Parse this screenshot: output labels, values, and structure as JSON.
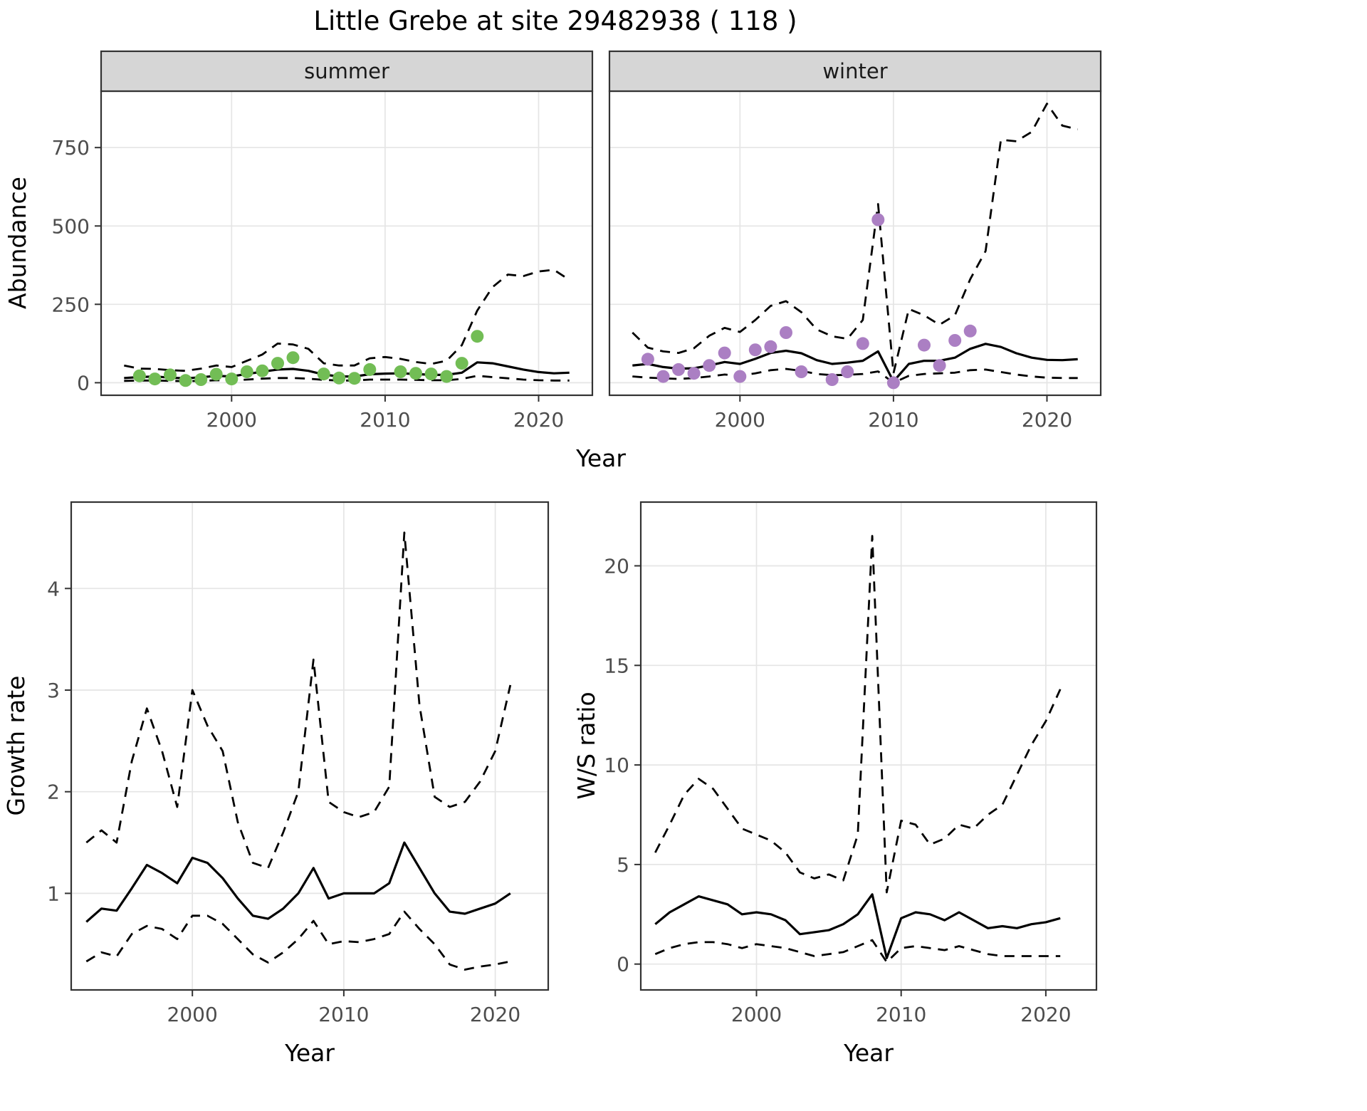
{
  "title": "Little Grebe at site 29482938 ( 118 )",
  "colors": {
    "line": "#000000",
    "grid": "#e5e5e5",
    "border": "#333333",
    "tick": "#333333",
    "axis_text": "#4d4d4d",
    "strip_bg": "#d6d6d6",
    "summer_point": "#72bd55",
    "winter_point": "#ab7fc3"
  },
  "chart_data": [
    {
      "id": "abundance",
      "type": "line",
      "xlabel": "Year",
      "ylabel": "Abundance",
      "xlim": [
        1991.5,
        2023.5
      ],
      "ylim": [
        -40,
        930
      ],
      "xticks": [
        2000,
        2010,
        2020
      ],
      "yticks": [
        0,
        250,
        500,
        750
      ],
      "grid": true,
      "legend": "none",
      "x": [
        1993,
        1994,
        1995,
        1996,
        1997,
        1998,
        1999,
        2000,
        2001,
        2002,
        2003,
        2004,
        2005,
        2006,
        2007,
        2008,
        2009,
        2010,
        2011,
        2012,
        2013,
        2014,
        2015,
        2016,
        2017,
        2018,
        2019,
        2020,
        2021,
        2022
      ],
      "facets": [
        {
          "label": "summer",
          "point_color": "#72bd55",
          "points": {
            "x": [
              1994,
              1995,
              1996,
              1997,
              1998,
              1999,
              2000,
              2001,
              2002,
              2003,
              2004,
              2006,
              2007,
              2008,
              2009,
              2011,
              2012,
              2013,
              2014,
              2015,
              2016
            ],
            "y": [
              22,
              12,
              25,
              7,
              10,
              27,
              12,
              35,
              38,
              62,
              80,
              28,
              15,
              14,
              42,
              35,
              30,
              28,
              20,
              62,
              148
            ]
          },
          "series": [
            {
              "name": "fit",
              "style": "solid",
              "y": [
                15,
                18,
                20,
                16,
                14,
                17,
                22,
                20,
                28,
                35,
                42,
                44,
                38,
                26,
                20,
                20,
                27,
                29,
                30,
                28,
                25,
                25,
                32,
                65,
                62,
                52,
                42,
                34,
                30,
                32
              ]
            },
            {
              "name": "upper_ci",
              "style": "dashed",
              "y": [
                55,
                45,
                44,
                40,
                38,
                45,
                55,
                50,
                70,
                90,
                125,
                122,
                108,
                62,
                55,
                55,
                78,
                82,
                76,
                66,
                60,
                70,
                120,
                230,
                305,
                345,
                340,
                355,
                360,
                328
              ]
            },
            {
              "name": "lower_ci",
              "style": "dashed",
              "y": [
                6,
                7,
                7,
                6,
                5,
                6,
                8,
                7,
                10,
                13,
                15,
                15,
                13,
                9,
                7,
                7,
                10,
                10,
                10,
                9,
                8,
                8,
                12,
                22,
                18,
                14,
                10,
                8,
                7,
                7
              ]
            }
          ]
        },
        {
          "label": "winter",
          "point_color": "#ab7fc3",
          "points": {
            "x": [
              1994,
              1995,
              1996,
              1997,
              1998,
              1999,
              2000,
              2001,
              2002,
              2003,
              2004,
              2006,
              2007,
              2008,
              2009,
              2010,
              2012,
              2013,
              2014,
              2015
            ],
            "y": [
              75,
              20,
              42,
              30,
              55,
              95,
              20,
              105,
              115,
              160,
              35,
              10,
              35,
              125,
              520,
              0,
              120,
              55,
              135,
              165
            ]
          },
          "series": [
            {
              "name": "fit",
              "style": "solid",
              "y": [
                55,
                60,
                50,
                45,
                46,
                55,
                66,
                60,
                76,
                95,
                102,
                94,
                72,
                60,
                64,
                70,
                100,
                4,
                60,
                70,
                70,
                80,
                108,
                124,
                114,
                94,
                80,
                73,
                72,
                75
              ]
            },
            {
              "name": "upper_ci",
              "style": "dashed",
              "y": [
                160,
                112,
                100,
                95,
                110,
                150,
                175,
                162,
                200,
                245,
                260,
                225,
                170,
                148,
                140,
                200,
                570,
                30,
                235,
                215,
                185,
                215,
                330,
                420,
                775,
                770,
                800,
                890,
                820,
                808
              ]
            },
            {
              "name": "lower_ci",
              "style": "dashed",
              "y": [
                20,
                16,
                14,
                12,
                15,
                20,
                26,
                22,
                30,
                40,
                44,
                38,
                28,
                24,
                25,
                28,
                36,
                0,
                22,
                28,
                30,
                32,
                40,
                42,
                34,
                26,
                20,
                16,
                15,
                15
              ]
            }
          ]
        }
      ]
    },
    {
      "id": "growth_rate",
      "type": "line",
      "xlabel": "Year",
      "ylabel": "Growth rate",
      "xlim": [
        1992,
        2023.5
      ],
      "ylim": [
        0.05,
        4.85
      ],
      "xticks": [
        2000,
        2010,
        2020
      ],
      "yticks": [
        1,
        2,
        3,
        4
      ],
      "grid": true,
      "legend": "none",
      "x": [
        1993,
        1994,
        1995,
        1996,
        1997,
        1998,
        1999,
        2000,
        2001,
        2002,
        2003,
        2004,
        2005,
        2006,
        2007,
        2008,
        2009,
        2010,
        2011,
        2012,
        2013,
        2014,
        2015,
        2016,
        2017,
        2018,
        2019,
        2020,
        2021
      ],
      "series": [
        {
          "name": "fit",
          "style": "solid",
          "y": [
            0.72,
            0.85,
            0.83,
            1.05,
            1.28,
            1.2,
            1.1,
            1.35,
            1.3,
            1.15,
            0.95,
            0.78,
            0.75,
            0.85,
            1.0,
            1.25,
            0.95,
            1.0,
            1.0,
            1.0,
            1.1,
            1.5,
            1.25,
            1.0,
            0.82,
            0.8,
            0.85,
            0.9,
            1.0
          ]
        },
        {
          "name": "upper_ci",
          "style": "dashed",
          "y": [
            1.5,
            1.62,
            1.5,
            2.3,
            2.82,
            2.4,
            1.85,
            3.0,
            2.65,
            2.4,
            1.7,
            1.3,
            1.25,
            1.6,
            2.0,
            3.3,
            1.9,
            1.8,
            1.75,
            1.8,
            2.05,
            4.55,
            2.85,
            1.95,
            1.85,
            1.9,
            2.1,
            2.4,
            3.05
          ]
        },
        {
          "name": "lower_ci",
          "style": "dashed",
          "y": [
            0.33,
            0.42,
            0.38,
            0.6,
            0.68,
            0.65,
            0.55,
            0.78,
            0.78,
            0.7,
            0.55,
            0.4,
            0.32,
            0.42,
            0.55,
            0.73,
            0.5,
            0.53,
            0.52,
            0.55,
            0.6,
            0.82,
            0.65,
            0.5,
            0.3,
            0.25,
            0.28,
            0.3,
            0.33
          ]
        }
      ]
    },
    {
      "id": "ws_ratio",
      "type": "line",
      "xlabel": "Year",
      "ylabel": "W/S ratio",
      "xlim": [
        1992,
        2023.5
      ],
      "ylim": [
        -1.3,
        23.2
      ],
      "xticks": [
        2000,
        2010,
        2020
      ],
      "yticks": [
        0,
        5,
        10,
        15,
        20
      ],
      "grid": true,
      "legend": "none",
      "x": [
        1993,
        1994,
        1995,
        1996,
        1997,
        1998,
        1999,
        2000,
        2001,
        2002,
        2003,
        2004,
        2005,
        2006,
        2007,
        2008,
        2009,
        2010,
        2011,
        2012,
        2013,
        2014,
        2015,
        2016,
        2017,
        2018,
        2019,
        2020,
        2021
      ],
      "series": [
        {
          "name": "fit",
          "style": "solid",
          "y": [
            2.0,
            2.6,
            3.0,
            3.4,
            3.2,
            3.0,
            2.5,
            2.6,
            2.5,
            2.2,
            1.5,
            1.6,
            1.7,
            2.0,
            2.5,
            3.5,
            0.3,
            2.3,
            2.6,
            2.5,
            2.2,
            2.6,
            2.2,
            1.8,
            1.9,
            1.8,
            2.0,
            2.1,
            2.3
          ]
        },
        {
          "name": "upper_ci",
          "style": "dashed",
          "y": [
            5.6,
            7.0,
            8.5,
            9.3,
            8.8,
            7.8,
            6.8,
            6.5,
            6.2,
            5.6,
            4.6,
            4.3,
            4.5,
            4.2,
            6.5,
            21.5,
            3.6,
            7.2,
            7.0,
            6.0,
            6.3,
            7.0,
            6.8,
            7.5,
            8.0,
            9.5,
            11.0,
            12.2,
            13.8
          ]
        },
        {
          "name": "lower_ci",
          "style": "dashed",
          "y": [
            0.5,
            0.8,
            1.0,
            1.1,
            1.1,
            1.0,
            0.8,
            1.0,
            0.9,
            0.8,
            0.6,
            0.4,
            0.5,
            0.6,
            0.9,
            1.2,
            0.1,
            0.8,
            0.9,
            0.8,
            0.7,
            0.9,
            0.7,
            0.5,
            0.4,
            0.4,
            0.4,
            0.4,
            0.4
          ]
        }
      ]
    }
  ]
}
